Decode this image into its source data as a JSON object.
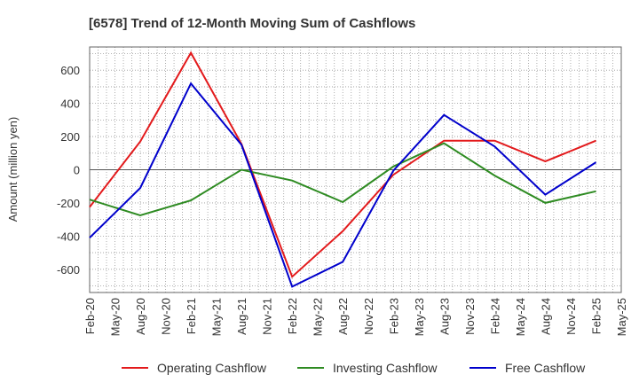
{
  "chart_data": {
    "type": "line",
    "title": "[6578]  Trend of 12-Month Moving Sum of Cashflows",
    "ylabel": "Amount (million yen)",
    "xlabel": "",
    "ylim": [
      -740,
      740
    ],
    "yticks": [
      -600,
      -400,
      -200,
      0,
      200,
      400,
      600
    ],
    "categories": [
      "Feb-20",
      "May-20",
      "Aug-20",
      "Nov-20",
      "Feb-21",
      "May-21",
      "Aug-21",
      "Nov-21",
      "Feb-22",
      "May-22",
      "Aug-22",
      "Nov-22",
      "Feb-23",
      "May-23",
      "Aug-23",
      "Nov-23",
      "Feb-24",
      "May-24",
      "Aug-24",
      "Nov-24",
      "Feb-25",
      "May-25"
    ],
    "grid": true,
    "legend_position": "bottom",
    "series": [
      {
        "name": "Operating Cashflow",
        "color": "#e31a1c",
        "x": [
          "Feb-20",
          "Aug-20",
          "Feb-21",
          "Aug-21",
          "Feb-22",
          "Aug-22",
          "Feb-23",
          "Aug-23",
          "Feb-24",
          "Aug-24",
          "Feb-25"
        ],
        "values": [
          -225,
          170,
          705,
          155,
          -645,
          -370,
          -30,
          175,
          175,
          50,
          175
        ]
      },
      {
        "name": "Investing Cashflow",
        "color": "#2e8b22",
        "x": [
          "Feb-20",
          "Aug-20",
          "Feb-21",
          "Aug-21",
          "Feb-22",
          "Aug-22",
          "Feb-23",
          "Aug-23",
          "Feb-24",
          "Aug-24",
          "Feb-25"
        ],
        "values": [
          -180,
          -275,
          -185,
          0,
          -65,
          -195,
          20,
          160,
          -35,
          -200,
          -130
        ]
      },
      {
        "name": "Free Cashflow",
        "color": "#0000cc",
        "x": [
          "Feb-20",
          "Aug-20",
          "Feb-21",
          "Aug-21",
          "Feb-22",
          "Aug-22",
          "Feb-23",
          "Aug-23",
          "Feb-24",
          "Aug-24",
          "Feb-25"
        ],
        "values": [
          -410,
          -110,
          520,
          150,
          -705,
          -555,
          -5,
          330,
          140,
          -150,
          45
        ]
      }
    ]
  }
}
